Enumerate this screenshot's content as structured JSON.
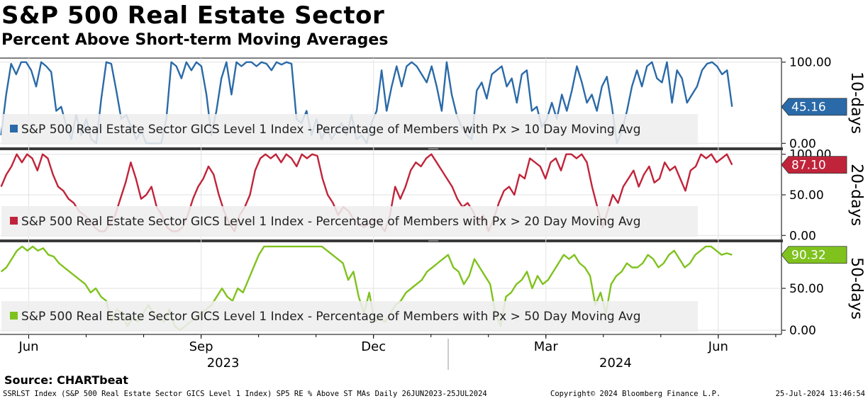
{
  "title": "S&P 500 Real Estate Sector",
  "subtitle": "Percent Above Short-term Moving Averages",
  "source": "Source: CHARTbeat",
  "footer": {
    "left": "SSRLST Index (S&P 500 Real Estate Sector GICS Level 1 Index) SP5 RE % Above ST MAs  Daily 26JUN2023-25JUL2024",
    "middle": "Copyright© 2024 Bloomberg Finance L.P.",
    "right": "25-Jul-2024 13:46:54"
  },
  "chart_data": {
    "type": "line",
    "x_ticks": [
      "Jun",
      "Sep",
      "Dec",
      "Mar",
      "Jun"
    ],
    "x_tick_positions": [
      0.5,
      3.5,
      6.5,
      9.5,
      12.5
    ],
    "x_range": [
      0,
      13.6
    ],
    "years": [
      "2023",
      "2024"
    ],
    "panels": [
      {
        "id": "p10",
        "axis_title": "10-days",
        "legend": "S&P 500 Real Estate Sector GICS Level 1 Index - Percentage of Members with Px > 10 Day Moving Avg",
        "color": "#2a6aa8",
        "last_value": "45.16",
        "ylim": [
          -5,
          105
        ],
        "yticks": [
          "100.00",
          "0.00"
        ],
        "ytick_values": [
          100,
          0
        ],
        "values": [
          10,
          60,
          98,
          85,
          100,
          100,
          90,
          70,
          100,
          95,
          88,
          40,
          45,
          22,
          5,
          35,
          10,
          30,
          5,
          0,
          55,
          100,
          98,
          65,
          30,
          35,
          20,
          5,
          15,
          0,
          0,
          0,
          0,
          30,
          100,
          95,
          80,
          100,
          90,
          100,
          95,
          60,
          10,
          40,
          80,
          100,
          60,
          100,
          95,
          100,
          100,
          95,
          100,
          98,
          90,
          100,
          97,
          100,
          98,
          30,
          25,
          40,
          10,
          30,
          5,
          20,
          5,
          15,
          25,
          10,
          35,
          5,
          10,
          0,
          25,
          40,
          90,
          40,
          70,
          95,
          70,
          95,
          100,
          95,
          85,
          75,
          95,
          70,
          40,
          100,
          60,
          35,
          20,
          10,
          5,
          65,
          75,
          55,
          85,
          90,
          95,
          70,
          80,
          50,
          85,
          90,
          40,
          45,
          20,
          30,
          50,
          30,
          60,
          40,
          65,
          95,
          75,
          50,
          60,
          40,
          70,
          82,
          45,
          0,
          15,
          40,
          70,
          90,
          70,
          95,
          100,
          80,
          75,
          100,
          50,
          90,
          80,
          50,
          60,
          70,
          90,
          98,
          100,
          95,
          85,
          90,
          45
        ],
        "tag_color": "#2a6aa8"
      },
      {
        "id": "p20",
        "axis_title": "20-days",
        "legend": "S&P 500 Real Estate Sector GICS Level 1 Index - Percentage of Members with Px > 20 Day Moving Avg",
        "color": "#c0243a",
        "last_value": "87.10",
        "ylim": [
          -5,
          105
        ],
        "yticks": [
          "100.00",
          "50.00",
          "0.00"
        ],
        "ytick_values": [
          100,
          50,
          0
        ],
        "values": [
          60,
          75,
          85,
          100,
          90,
          100,
          95,
          80,
          100,
          95,
          75,
          60,
          55,
          45,
          40,
          30,
          25,
          20,
          10,
          5,
          5,
          15,
          25,
          45,
          65,
          90,
          70,
          45,
          50,
          60,
          35,
          25,
          10,
          5,
          5,
          10,
          25,
          45,
          60,
          70,
          85,
          75,
          50,
          30,
          15,
          5,
          25,
          35,
          50,
          80,
          95,
          100,
          95,
          100,
          90,
          100,
          95,
          85,
          100,
          95,
          100,
          98,
          70,
          50,
          40,
          25,
          35,
          30,
          20,
          15,
          10,
          15,
          20,
          15,
          5,
          25,
          60,
          45,
          60,
          80,
          90,
          85,
          95,
          100,
          90,
          80,
          70,
          60,
          45,
          35,
          40,
          30,
          15,
          25,
          5,
          20,
          40,
          55,
          60,
          50,
          75,
          70,
          95,
          90,
          85,
          70,
          90,
          95,
          80,
          100,
          100,
          95,
          100,
          90,
          60,
          35,
          10,
          30,
          50,
          40,
          60,
          70,
          80,
          60,
          75,
          85,
          65,
          70,
          90,
          80,
          85,
          70,
          55,
          80,
          85,
          100,
          95,
          100,
          90,
          95,
          100,
          87
        ],
        "tag_color": "#c0243a"
      },
      {
        "id": "p50",
        "axis_title": "50-days",
        "legend": "S&P 500 Real Estate Sector GICS Level 1 Index - Percentage of Members with Px > 50 Day Moving Avg",
        "color": "#7fc21e",
        "last_value": "90.32",
        "ylim": [
          -5,
          105
        ],
        "yticks": [
          "50.00",
          "0.00"
        ],
        "ytick_values": [
          50,
          0
        ],
        "values": [
          70,
          75,
          85,
          95,
          100,
          95,
          100,
          95,
          98,
          90,
          88,
          80,
          75,
          70,
          65,
          60,
          55,
          45,
          50,
          40,
          35,
          10,
          25,
          20,
          5,
          15,
          10,
          20,
          30,
          20,
          15,
          10,
          25,
          5,
          0,
          5,
          10,
          15,
          20,
          25,
          30,
          40,
          50,
          40,
          35,
          50,
          45,
          60,
          75,
          90,
          100,
          100,
          100,
          100,
          100,
          100,
          100,
          100,
          100,
          100,
          100,
          100,
          95,
          90,
          85,
          80,
          60,
          70,
          40,
          20,
          45,
          10,
          15,
          10,
          20,
          30,
          35,
          45,
          50,
          55,
          60,
          70,
          75,
          80,
          85,
          90,
          75,
          70,
          55,
          65,
          85,
          75,
          65,
          55,
          20,
          5,
          40,
          45,
          55,
          60,
          70,
          50,
          65,
          55,
          60,
          70,
          80,
          90,
          85,
          90,
          80,
          75,
          65,
          30,
          45,
          20,
          55,
          65,
          70,
          80,
          75,
          75,
          80,
          90,
          85,
          75,
          80,
          90,
          95,
          85,
          75,
          80,
          90,
          95,
          100,
          100,
          95,
          90,
          92,
          90
        ],
        "tag_color": "#7fc21e"
      }
    ]
  }
}
